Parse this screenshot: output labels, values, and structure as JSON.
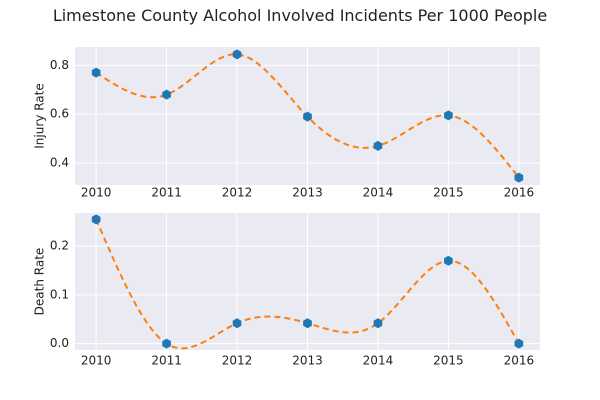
{
  "chart_data": [
    {
      "type": "line",
      "title": "Limestone County Alcohol Involved Incidents Per 1000 People",
      "xlabel": "",
      "ylabel": "Injury Rate",
      "x": [
        2010,
        2011,
        2012,
        2013,
        2014,
        2015,
        2016
      ],
      "series": [
        {
          "values": [
            0.77,
            0.68,
            0.845,
            0.59,
            0.47,
            0.595,
            0.34
          ]
        }
      ],
      "yticks": [
        0.4,
        0.6,
        0.8
      ],
      "ylim": [
        0.31,
        0.875
      ],
      "xlim": [
        2009.7,
        2016.3
      ],
      "grid": true,
      "markers": "hexagon",
      "fit_line": "dashed smooth curve"
    },
    {
      "type": "line",
      "xlabel": "",
      "ylabel": "Death Rate",
      "x": [
        2010,
        2011,
        2012,
        2013,
        2014,
        2015,
        2016
      ],
      "series": [
        {
          "values": [
            0.255,
            0.0,
            0.042,
            0.042,
            0.042,
            0.17,
            0.0
          ]
        }
      ],
      "yticks": [
        0.0,
        0.1,
        0.2
      ],
      "ylim": [
        -0.013,
        0.268
      ],
      "xlim": [
        2009.7,
        2016.3
      ],
      "grid": true,
      "markers": "hexagon",
      "fit_line": "dashed smooth curve"
    }
  ],
  "colors": {
    "plot_background": "#eaeaf2",
    "grid": "#ffffff",
    "marker": "#1f77b4",
    "fit_line": "#ff7f0e",
    "text": "#222222"
  }
}
